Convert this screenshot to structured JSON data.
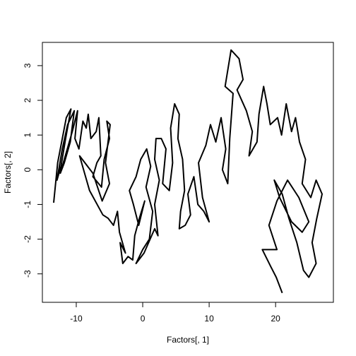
{
  "chart_data": {
    "type": "line",
    "xlabel": "Factors[, 1]",
    "ylabel": "Factors[, 2]",
    "xlim": [
      -15.1,
      28.7
    ],
    "ylim": [
      -3.82,
      3.67
    ],
    "xticks": [
      -10,
      0,
      10,
      20
    ],
    "yticks": [
      -3,
      -2,
      -1,
      0,
      1,
      2,
      3
    ],
    "x": [
      -13.4,
      -12.8,
      -12.1,
      -11.5,
      -10.8,
      -11.6,
      -12.3,
      -12.9,
      -12.1,
      -11.3,
      -10.3,
      -10.9,
      -11.8,
      -12.4,
      -11.5,
      -10.6,
      -9.8,
      -10.2,
      -9.6,
      -9.0,
      -8.5,
      -8.2,
      -7.8,
      -7.0,
      -6.6,
      -6.3,
      -6.9,
      -7.5,
      -6.2,
      -5.8,
      -5.0,
      -5.4,
      -4.9,
      -5.6,
      -5.0,
      -6.1,
      -7.5,
      -9.5,
      -8.0,
      -6.0,
      -5.2,
      -4.4,
      -3.8,
      -3.5,
      -2.6,
      -3.4,
      -3.0,
      -2.2,
      -1.5,
      -1.2,
      -0.5,
      0.3,
      -0.6,
      -1.4,
      -2.0,
      -1.0,
      -0.3,
      0.6,
      1.2,
      0.5,
      1.5,
      1.0,
      0.0,
      -1.0,
      0.2,
      1.8,
      2.3,
      1.8,
      2.5,
      1.8,
      2.0,
      2.8,
      3.5,
      3.0,
      4.0,
      4.5,
      4.2,
      4.8,
      5.5,
      5.3,
      6.0,
      6.3,
      5.7,
      5.5,
      6.4,
      7.2,
      6.8,
      7.7,
      8.3,
      9.2,
      10.0,
      9.0,
      8.4,
      9.5,
      10.2,
      11.0,
      11.8,
      12.5,
      12.0,
      12.8,
      13.1,
      13.6,
      12.4,
      13.3,
      14.5,
      15.1,
      14.2,
      15.6,
      16.5,
      16.0,
      17.2,
      17.5,
      18.2,
      18.7,
      19.2,
      20.3,
      20.9,
      21.6,
      22.4,
      23.0,
      23.6,
      24.5,
      24.0,
      25.3,
      26.1,
      27.0,
      26.2,
      25.5,
      26.1,
      25.0,
      24.2,
      23.2,
      22.0,
      21.0,
      19.8,
      20.6,
      22.4,
      24.0,
      25.0,
      23.5,
      21.8,
      20.2,
      19.0,
      20.2,
      18.0,
      19.3,
      20.1,
      21.0
    ],
    "series": [
      {
        "color": "#000000",
        "values": [
          -0.95,
          0.2,
          0.9,
          1.5,
          1.75,
          0.9,
          0.1,
          -0.3,
          0.6,
          1.3,
          1.7,
          0.8,
          0.2,
          -0.1,
          0.5,
          1.1,
          1.7,
          0.9,
          0.6,
          1.4,
          1.2,
          1.6,
          0.9,
          1.1,
          1.5,
          0.4,
          0.2,
          -0.2,
          -0.5,
          0.3,
          0.9,
          1.4,
          1.3,
          0.2,
          -0.4,
          -0.9,
          -0.1,
          0.4,
          -0.6,
          -1.3,
          -1.4,
          -1.6,
          -1.2,
          -1.8,
          -2.4,
          -2.1,
          -2.7,
          -2.5,
          -2.6,
          -1.9,
          -1.4,
          -0.9,
          -1.6,
          -1.0,
          -0.6,
          -0.2,
          0.3,
          0.6,
          0.1,
          -0.5,
          -1.2,
          -2.0,
          -2.3,
          -2.7,
          -2.4,
          -1.7,
          -1.9,
          -1.0,
          -0.3,
          0.3,
          0.9,
          0.9,
          0.6,
          -0.4,
          -0.6,
          0.2,
          1.2,
          1.9,
          1.6,
          0.9,
          0.3,
          -0.6,
          -1.2,
          -1.7,
          -1.6,
          -1.3,
          -0.7,
          -0.2,
          -1.0,
          -1.2,
          -1.5,
          -0.8,
          0.2,
          0.7,
          1.3,
          0.8,
          1.5,
          0.6,
          0.0,
          -0.4,
          0.9,
          2.2,
          2.4,
          3.45,
          3.2,
          2.6,
          2.3,
          1.7,
          1.1,
          0.4,
          0.8,
          1.6,
          2.4,
          1.9,
          1.3,
          1.5,
          1.0,
          1.9,
          1.1,
          1.5,
          0.8,
          0.3,
          -0.4,
          -0.8,
          -0.3,
          -0.7,
          -1.4,
          -2.1,
          -2.7,
          -3.1,
          -2.9,
          -2.1,
          -1.4,
          -0.7,
          -0.3,
          -0.8,
          -1.5,
          -1.8,
          -1.5,
          -0.8,
          -0.3,
          -0.9,
          -1.6,
          -2.3,
          -2.3,
          -2.8,
          -3.1,
          -3.55
        ]
      }
    ]
  }
}
